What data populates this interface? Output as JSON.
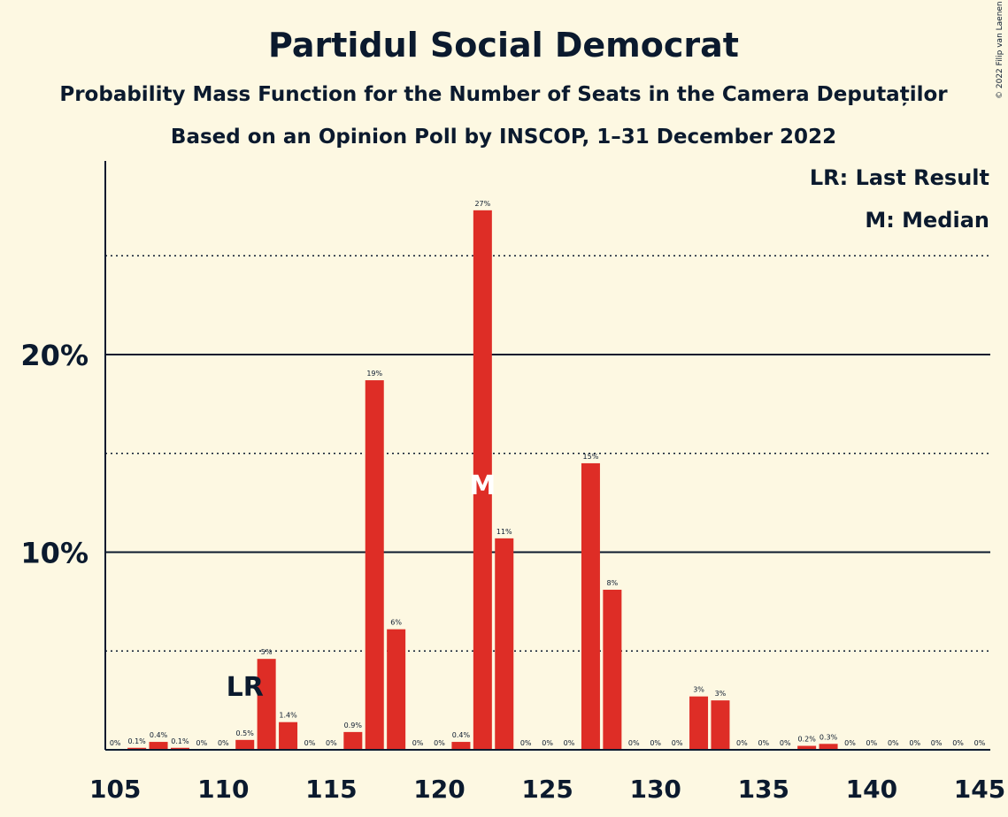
{
  "header": {
    "title": "Partidul Social Democrat",
    "subtitle": "Probability Mass Function for the Number of Seats in the Camera Deputaților",
    "subtitle2": "Based on an Opinion Poll by INSCOP, 1–31 December 2022"
  },
  "legend": {
    "lr": "LR: Last Result",
    "m": "M: Median"
  },
  "copyright": "© 2022 Filip van Laenen",
  "colors": {
    "bar": "#de2d26",
    "background": "#fdf8e2",
    "text": "#0b1a2e"
  },
  "chart_data": {
    "type": "bar",
    "x": [
      105,
      106,
      107,
      108,
      109,
      110,
      111,
      112,
      113,
      114,
      115,
      116,
      117,
      118,
      119,
      120,
      121,
      122,
      123,
      124,
      125,
      126,
      127,
      128,
      129,
      130,
      131,
      132,
      133,
      134,
      135,
      136,
      137,
      138,
      139,
      140,
      141,
      142,
      143,
      144,
      145
    ],
    "values": [
      0,
      0.1,
      0.4,
      0.1,
      0,
      0,
      0.5,
      4.6,
      1.4,
      0,
      0,
      0.9,
      18.7,
      6.1,
      0,
      0,
      0.4,
      27.3,
      10.7,
      0,
      0,
      0,
      14.5,
      8.1,
      0,
      0,
      0,
      2.7,
      2.5,
      0,
      0,
      0,
      0.2,
      0.3,
      0,
      0,
      0,
      0,
      0,
      0,
      0
    ],
    "labels": [
      "0%",
      "0.1%",
      "0.4%",
      "0.1%",
      "0%",
      "0%",
      "0.5%",
      "5%",
      "1.4%",
      "0%",
      "0%",
      "0.9%",
      "19%",
      "6%",
      "0%",
      "0%",
      "0.4%",
      "27%",
      "11%",
      "0%",
      "0%",
      "0%",
      "15%",
      "8%",
      "0%",
      "0%",
      "0%",
      "3%",
      "3%",
      "0%",
      "0%",
      "0%",
      "0.2%",
      "0.3%",
      "0%",
      "0%",
      "0%",
      "0%",
      "0%",
      "0%",
      "0%"
    ],
    "xlim": [
      105,
      145
    ],
    "ylim": [
      0,
      30
    ],
    "x_ticks": [
      "105",
      "110",
      "115",
      "120",
      "125",
      "130",
      "135",
      "140",
      "145"
    ],
    "y_ticks": [
      "10%",
      "20%"
    ],
    "last_result": {
      "seat": 111,
      "label": "LR"
    },
    "median": {
      "seat": 122,
      "label": "M"
    },
    "legend_position": "top-right"
  }
}
